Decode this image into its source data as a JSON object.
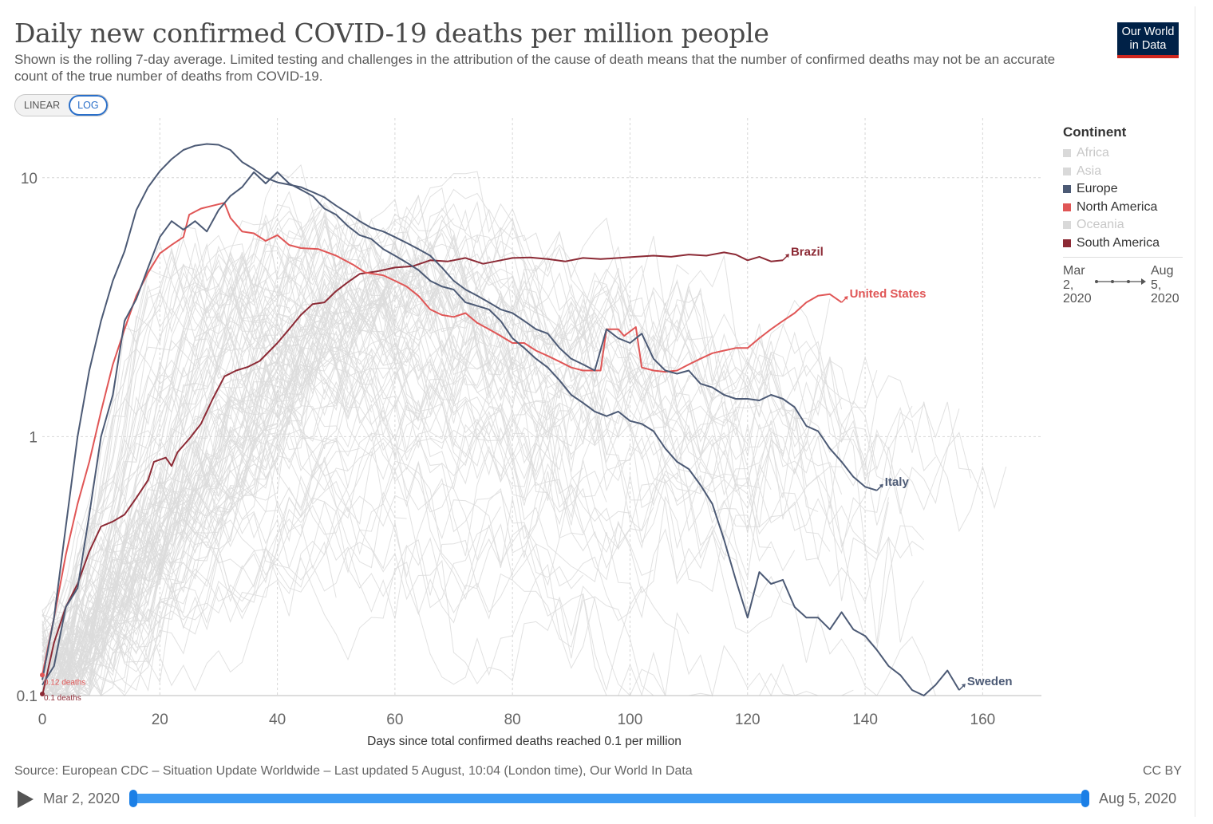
{
  "header": {
    "title": "Daily new confirmed COVID-19 deaths per million people",
    "subtitle": "Shown is the rolling 7-day average. Limited testing and challenges in the attribution of the cause of death means that the number of confirmed deaths may not be an accurate count of the true number of deaths from COVID-19.",
    "logo_line1": "Our World",
    "logo_line2": "in Data"
  },
  "controls": {
    "linear_label": "LINEAR",
    "log_label": "LOG",
    "active_scale": "LOG"
  },
  "legend": {
    "title": "Continent",
    "items": [
      {
        "label": "Africa",
        "color": "#d0d0d0",
        "active": false
      },
      {
        "label": "Asia",
        "color": "#d0d0d0",
        "active": false
      },
      {
        "label": "Europe",
        "color": "#4c5a75",
        "active": true
      },
      {
        "label": "North America",
        "color": "#e05656",
        "active": true
      },
      {
        "label": "Oceania",
        "color": "#d0d0d0",
        "active": false
      },
      {
        "label": "South America",
        "color": "#8c2a35",
        "active": true
      }
    ]
  },
  "time_indicator": {
    "start": "Mar 2, 2020",
    "end": "Aug 5, 2020"
  },
  "footer": {
    "source": "Source: European CDC – Situation Update Worldwide – Last updated 5 August, 10:04 (London time), Our World In Data",
    "license": "CC BY"
  },
  "timeline": {
    "start_label": "Mar 2, 2020",
    "end_label": "Aug 5, 2020"
  },
  "chart_data": {
    "type": "line",
    "xlabel": "Days since total confirmed deaths reached 0.1 per million",
    "ylabel": "",
    "y_scale": "log",
    "xlim": [
      0,
      170
    ],
    "ylim": [
      0.1,
      17
    ],
    "x_ticks": [
      0,
      20,
      40,
      60,
      80,
      100,
      120,
      140,
      160
    ],
    "y_ticks": [
      0.1,
      1,
      10
    ],
    "y_tick_labels": [
      "0.1",
      "1",
      "10"
    ],
    "grid": true,
    "legend_position": "right",
    "start_annotations": [
      {
        "text": "0.12 deaths",
        "x": 0,
        "y": 0.12,
        "color": "#e05656"
      },
      {
        "text": "0.1 deaths",
        "x": 0,
        "y": 0.1,
        "color": "#8c2a35"
      }
    ],
    "series": [
      {
        "name": "Brazil",
        "color": "#8c2a35",
        "points": [
          [
            0,
            0.1
          ],
          [
            2,
            0.16
          ],
          [
            4,
            0.22
          ],
          [
            6,
            0.27
          ],
          [
            8,
            0.36
          ],
          [
            10,
            0.45
          ],
          [
            12,
            0.47
          ],
          [
            14,
            0.5
          ],
          [
            16,
            0.58
          ],
          [
            18,
            0.68
          ],
          [
            19,
            0.8
          ],
          [
            21,
            0.83
          ],
          [
            22,
            0.77
          ],
          [
            23,
            0.87
          ],
          [
            25,
            0.98
          ],
          [
            27,
            1.12
          ],
          [
            29,
            1.4
          ],
          [
            31,
            1.71
          ],
          [
            33,
            1.8
          ],
          [
            35,
            1.86
          ],
          [
            37,
            1.96
          ],
          [
            40,
            2.3
          ],
          [
            42,
            2.6
          ],
          [
            44,
            2.95
          ],
          [
            46,
            3.25
          ],
          [
            48,
            3.3
          ],
          [
            50,
            3.65
          ],
          [
            52,
            3.95
          ],
          [
            54,
            4.25
          ],
          [
            57,
            4.35
          ],
          [
            60,
            4.5
          ],
          [
            63,
            4.55
          ],
          [
            66,
            4.8
          ],
          [
            69,
            4.75
          ],
          [
            72,
            4.9
          ],
          [
            75,
            4.65
          ],
          [
            78,
            4.8
          ],
          [
            80,
            4.9
          ],
          [
            83,
            4.92
          ],
          [
            86,
            4.85
          ],
          [
            89,
            4.75
          ],
          [
            92,
            4.9
          ],
          [
            95,
            4.85
          ],
          [
            98,
            4.9
          ],
          [
            101,
            4.95
          ],
          [
            104,
            5.0
          ],
          [
            107,
            4.95
          ],
          [
            110,
            5.05
          ],
          [
            113,
            5.0
          ],
          [
            116,
            5.15
          ],
          [
            118,
            5.05
          ],
          [
            120,
            4.8
          ],
          [
            122,
            4.95
          ],
          [
            124,
            4.75
          ],
          [
            126,
            4.8
          ]
        ]
      },
      {
        "name": "United States",
        "color": "#e05656",
        "points": [
          [
            0,
            0.12
          ],
          [
            2,
            0.2
          ],
          [
            4,
            0.35
          ],
          [
            6,
            0.55
          ],
          [
            8,
            0.8
          ],
          [
            10,
            1.25
          ],
          [
            12,
            1.9
          ],
          [
            14,
            2.6
          ],
          [
            16,
            3.5
          ],
          [
            18,
            4.3
          ],
          [
            20,
            5.1
          ],
          [
            22,
            5.5
          ],
          [
            24,
            5.9
          ],
          [
            25,
            7.2
          ],
          [
            27,
            7.6
          ],
          [
            29,
            7.8
          ],
          [
            31,
            8.0
          ],
          [
            32,
            7.0
          ],
          [
            34,
            6.2
          ],
          [
            36,
            6.1
          ],
          [
            38,
            5.7
          ],
          [
            40,
            6.0
          ],
          [
            42,
            5.5
          ],
          [
            44,
            5.35
          ],
          [
            47,
            5.3
          ],
          [
            50,
            5.0
          ],
          [
            53,
            4.6
          ],
          [
            55,
            4.3
          ],
          [
            58,
            4.2
          ],
          [
            60,
            4.0
          ],
          [
            62,
            3.8
          ],
          [
            64,
            3.5
          ],
          [
            66,
            3.1
          ],
          [
            68,
            2.95
          ],
          [
            70,
            2.9
          ],
          [
            72,
            3.0
          ],
          [
            74,
            2.75
          ],
          [
            76,
            2.6
          ],
          [
            78,
            2.45
          ],
          [
            80,
            2.3
          ],
          [
            82,
            2.3
          ],
          [
            84,
            2.15
          ],
          [
            86,
            2.05
          ],
          [
            88,
            1.95
          ],
          [
            90,
            1.85
          ],
          [
            92,
            1.8
          ],
          [
            95,
            1.8
          ],
          [
            96,
            2.6
          ],
          [
            98,
            2.6
          ],
          [
            99,
            2.45
          ],
          [
            101,
            2.65
          ],
          [
            102,
            1.85
          ],
          [
            104,
            1.8
          ],
          [
            106,
            1.78
          ],
          [
            108,
            1.8
          ],
          [
            110,
            1.9
          ],
          [
            112,
            2.0
          ],
          [
            114,
            2.1
          ],
          [
            116,
            2.15
          ],
          [
            118,
            2.2
          ],
          [
            120,
            2.2
          ],
          [
            122,
            2.4
          ],
          [
            124,
            2.6
          ],
          [
            126,
            2.8
          ],
          [
            128,
            3.0
          ],
          [
            130,
            3.3
          ],
          [
            132,
            3.5
          ],
          [
            134,
            3.55
          ],
          [
            136,
            3.3
          ]
        ]
      },
      {
        "name": "Sweden",
        "color": "#4c5a75",
        "points": [
          [
            0,
            0.11
          ],
          [
            2,
            0.13
          ],
          [
            4,
            0.22
          ],
          [
            6,
            0.26
          ],
          [
            8,
            0.5
          ],
          [
            10,
            1.0
          ],
          [
            12,
            1.45
          ],
          [
            14,
            2.8
          ],
          [
            16,
            3.4
          ],
          [
            18,
            4.5
          ],
          [
            20,
            5.9
          ],
          [
            22,
            6.8
          ],
          [
            24,
            6.3
          ],
          [
            26,
            6.8
          ],
          [
            28,
            6.2
          ],
          [
            30,
            7.5
          ],
          [
            32,
            8.5
          ],
          [
            34,
            9.2
          ],
          [
            36,
            10.5
          ],
          [
            38,
            9.5
          ],
          [
            40,
            10.5
          ],
          [
            42,
            9.5
          ],
          [
            44,
            9.0
          ],
          [
            46,
            8.5
          ],
          [
            48,
            7.6
          ],
          [
            50,
            7.2
          ],
          [
            52,
            6.5
          ],
          [
            54,
            6.0
          ],
          [
            56,
            5.8
          ],
          [
            58,
            5.3
          ],
          [
            60,
            5.0
          ],
          [
            62,
            4.7
          ],
          [
            64,
            4.4
          ],
          [
            66,
            4.0
          ],
          [
            68,
            3.8
          ],
          [
            70,
            3.7
          ],
          [
            72,
            3.3
          ],
          [
            74,
            3.2
          ],
          [
            76,
            3.1
          ],
          [
            78,
            2.8
          ],
          [
            80,
            2.4
          ],
          [
            82,
            2.2
          ],
          [
            84,
            2.0
          ],
          [
            86,
            1.85
          ],
          [
            88,
            1.65
          ],
          [
            90,
            1.45
          ],
          [
            92,
            1.35
          ],
          [
            94,
            1.25
          ],
          [
            96,
            1.2
          ],
          [
            98,
            1.25
          ],
          [
            100,
            1.15
          ],
          [
            102,
            1.12
          ],
          [
            104,
            1.05
          ],
          [
            106,
            0.9
          ],
          [
            108,
            0.8
          ],
          [
            110,
            0.75
          ],
          [
            112,
            0.65
          ],
          [
            114,
            0.55
          ],
          [
            116,
            0.4
          ],
          [
            118,
            0.28
          ],
          [
            120,
            0.2
          ],
          [
            122,
            0.3
          ],
          [
            124,
            0.27
          ],
          [
            126,
            0.28
          ],
          [
            128,
            0.22
          ],
          [
            130,
            0.2
          ],
          [
            132,
            0.2
          ],
          [
            134,
            0.18
          ],
          [
            136,
            0.21
          ],
          [
            138,
            0.18
          ],
          [
            140,
            0.17
          ],
          [
            142,
            0.15
          ],
          [
            144,
            0.13
          ],
          [
            146,
            0.12
          ],
          [
            148,
            0.105
          ],
          [
            150,
            0.1
          ],
          [
            152,
            0.11
          ],
          [
            154,
            0.125
          ],
          [
            156,
            0.105
          ]
        ]
      },
      {
        "name": "Italy",
        "color": "#4c5a75",
        "points": [
          [
            0,
            0.115
          ],
          [
            2,
            0.2
          ],
          [
            4,
            0.45
          ],
          [
            6,
            1.0
          ],
          [
            8,
            1.8
          ],
          [
            10,
            2.8
          ],
          [
            12,
            4.0
          ],
          [
            14,
            5.2
          ],
          [
            16,
            7.5
          ],
          [
            18,
            9.2
          ],
          [
            20,
            10.6
          ],
          [
            22,
            11.8
          ],
          [
            24,
            12.8
          ],
          [
            26,
            13.3
          ],
          [
            28,
            13.5
          ],
          [
            30,
            13.4
          ],
          [
            32,
            12.8
          ],
          [
            34,
            11.5
          ],
          [
            36,
            10.8
          ],
          [
            38,
            10.0
          ],
          [
            40,
            9.6
          ],
          [
            42,
            9.4
          ],
          [
            44,
            9.2
          ],
          [
            46,
            8.8
          ],
          [
            48,
            8.4
          ],
          [
            50,
            7.8
          ],
          [
            52,
            7.3
          ],
          [
            54,
            6.8
          ],
          [
            56,
            6.4
          ],
          [
            58,
            6.2
          ],
          [
            60,
            5.9
          ],
          [
            62,
            5.6
          ],
          [
            64,
            5.3
          ],
          [
            66,
            5.0
          ],
          [
            68,
            4.5
          ],
          [
            70,
            4.0
          ],
          [
            72,
            3.7
          ],
          [
            74,
            3.5
          ],
          [
            76,
            3.3
          ],
          [
            78,
            3.1
          ],
          [
            80,
            3.0
          ],
          [
            82,
            2.8
          ],
          [
            84,
            2.6
          ],
          [
            86,
            2.5
          ],
          [
            88,
            2.2
          ],
          [
            90,
            2.0
          ],
          [
            92,
            1.9
          ],
          [
            94,
            1.8
          ],
          [
            96,
            2.6
          ],
          [
            98,
            2.4
          ],
          [
            100,
            2.3
          ],
          [
            102,
            2.5
          ],
          [
            104,
            2.0
          ],
          [
            106,
            1.8
          ],
          [
            108,
            1.75
          ],
          [
            110,
            1.8
          ],
          [
            112,
            1.6
          ],
          [
            114,
            1.55
          ],
          [
            116,
            1.45
          ],
          [
            118,
            1.4
          ],
          [
            120,
            1.4
          ],
          [
            122,
            1.38
          ],
          [
            124,
            1.45
          ],
          [
            126,
            1.4
          ],
          [
            128,
            1.3
          ],
          [
            130,
            1.1
          ],
          [
            132,
            1.05
          ],
          [
            134,
            0.9
          ],
          [
            136,
            0.8
          ],
          [
            138,
            0.7
          ],
          [
            140,
            0.64
          ],
          [
            142,
            0.62
          ]
        ]
      }
    ]
  }
}
